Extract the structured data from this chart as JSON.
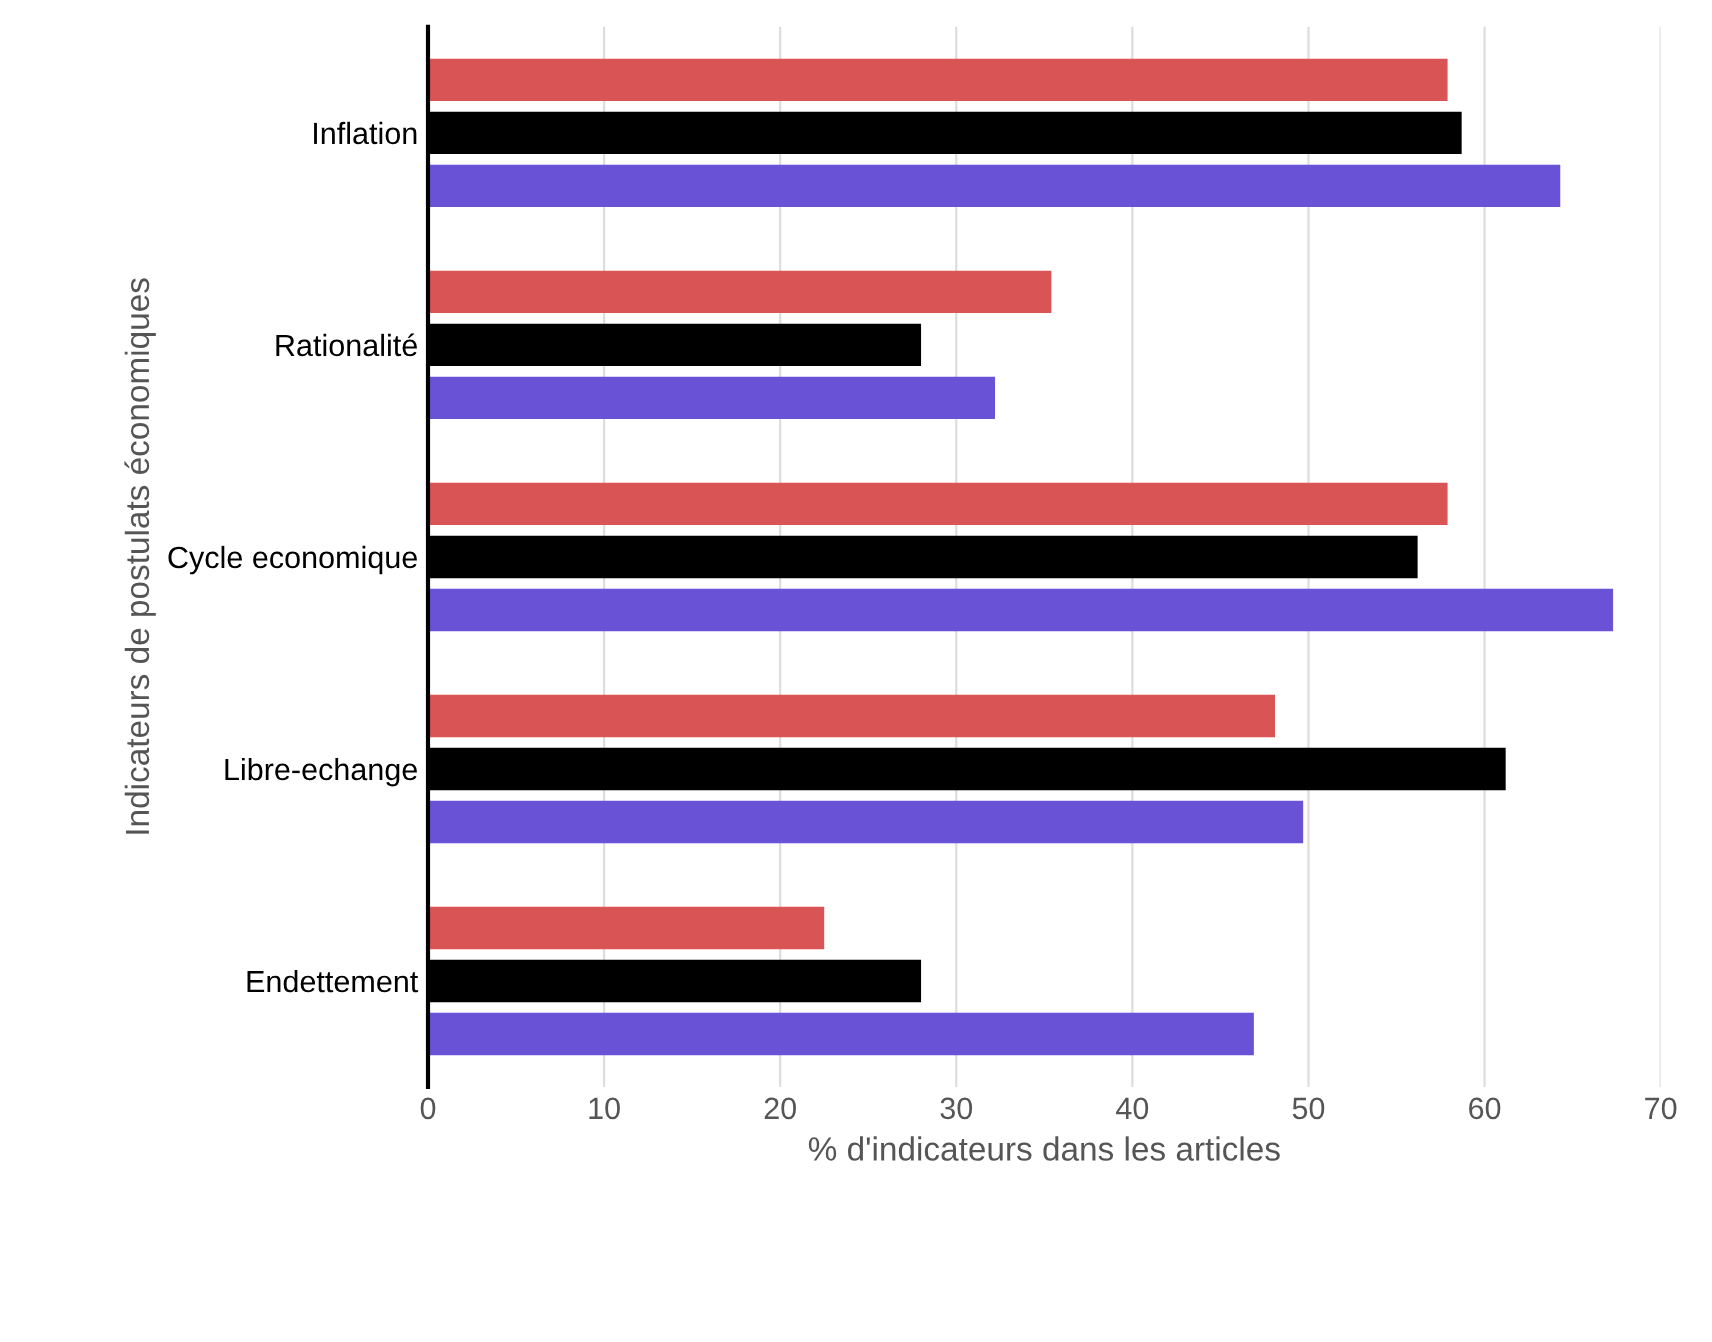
{
  "chart_data": {
    "type": "bar",
    "orientation": "horizontal",
    "xlabel": "% d'indicateurs dans les articles",
    "ylabel": "Indicateurs de postulats économiques",
    "categories": [
      "Inflation",
      "Rationalité",
      "Cycle economique",
      "Libre-echange",
      "Endettement"
    ],
    "series": [
      {
        "color": "#d95454",
        "values": [
          57.9,
          35.4,
          57.9,
          48.1,
          22.5
        ]
      },
      {
        "color": "#000000",
        "values": [
          58.7,
          28.0,
          56.2,
          61.2,
          28.0
        ]
      },
      {
        "color": "#6a52d6",
        "values": [
          64.3,
          32.2,
          67.3,
          49.7,
          46.9
        ]
      }
    ],
    "xlim": [
      0,
      70
    ],
    "xticks": [
      0,
      10,
      20,
      30,
      40,
      50,
      60,
      70
    ],
    "grid": "x"
  }
}
